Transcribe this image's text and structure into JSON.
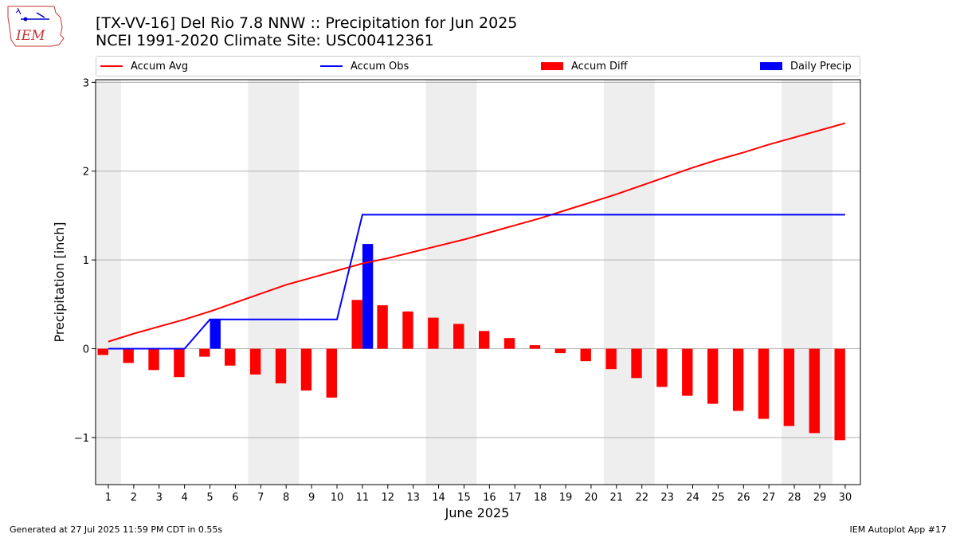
{
  "header": {
    "title": "[TX-VV-16] Del Rio 7.8 NNW :: Precipitation for Jun 2025",
    "subtitle": "NCEI 1991-2020 Climate Site: USC00412361",
    "logo_text": "IEM"
  },
  "footer": {
    "generated": "Generated at 27 Jul 2025 11:59 PM CDT in 0.55s",
    "app": "IEM Autoplot App #17"
  },
  "legend": [
    {
      "label": "Accum Avg",
      "kind": "line",
      "color": "#ff0000"
    },
    {
      "label": "Accum Obs",
      "kind": "line",
      "color": "#0000ff"
    },
    {
      "label": "Accum Diff",
      "kind": "bar",
      "color": "#ff0000"
    },
    {
      "label": "Daily Precip",
      "kind": "bar",
      "color": "#0000ff"
    }
  ],
  "chart_data": {
    "type": "bar",
    "xlabel": "June 2025",
    "ylabel": "Precipitation [inch]",
    "ylim": [
      -1.53,
      3.03
    ],
    "yticks": [
      -1,
      0,
      1,
      2,
      3
    ],
    "ytick_labels": [
      "−1",
      "0",
      "1",
      "2",
      "3"
    ],
    "grid": true,
    "legend_position": "top",
    "days": [
      1,
      2,
      3,
      4,
      5,
      6,
      7,
      8,
      9,
      10,
      11,
      12,
      13,
      14,
      15,
      16,
      17,
      18,
      19,
      20,
      21,
      22,
      23,
      24,
      25,
      26,
      27,
      28,
      29,
      30
    ],
    "weekend_shading": [
      [
        1,
        1
      ],
      [
        7,
        8
      ],
      [
        14,
        15
      ],
      [
        21,
        22
      ],
      [
        28,
        29
      ]
    ],
    "series": [
      {
        "name": "Accum Avg",
        "kind": "line",
        "color": "#ff0000",
        "values": [
          0.08,
          0.17,
          0.25,
          0.33,
          0.42,
          0.52,
          0.62,
          0.72,
          0.8,
          0.88,
          0.96,
          1.02,
          1.09,
          1.16,
          1.23,
          1.31,
          1.39,
          1.47,
          1.56,
          1.65,
          1.74,
          1.84,
          1.94,
          2.04,
          2.13,
          2.21,
          2.3,
          2.38,
          2.46,
          2.54
        ]
      },
      {
        "name": "Accum Obs",
        "kind": "line",
        "color": "#0000ff",
        "values": [
          0,
          0,
          0,
          0,
          0.33,
          0.33,
          0.33,
          0.33,
          0.33,
          0.33,
          1.51,
          1.51,
          1.51,
          1.51,
          1.51,
          1.51,
          1.51,
          1.51,
          1.51,
          1.51,
          1.51,
          1.51,
          1.51,
          1.51,
          1.51,
          1.51,
          1.51,
          1.51,
          1.51,
          1.51
        ]
      },
      {
        "name": "Accum Diff",
        "kind": "bar",
        "color": "#ff0000",
        "values": [
          -0.07,
          -0.16,
          -0.24,
          -0.32,
          -0.09,
          -0.19,
          -0.29,
          -0.39,
          -0.47,
          -0.55,
          0.55,
          0.49,
          0.42,
          0.35,
          0.28,
          0.2,
          0.12,
          0.04,
          -0.05,
          -0.14,
          -0.23,
          -0.33,
          -0.43,
          -0.53,
          -0.62,
          -0.7,
          -0.79,
          -0.87,
          -0.95,
          -1.03
        ]
      },
      {
        "name": "Daily Precip",
        "kind": "bar",
        "color": "#0000ff",
        "values": [
          0,
          0,
          0,
          0,
          0.33,
          0,
          0,
          0,
          0,
          0,
          1.18,
          0,
          0,
          0,
          0,
          0,
          0,
          0,
          0,
          0,
          0,
          0,
          0,
          0,
          0,
          0,
          0,
          0,
          0,
          0
        ]
      }
    ]
  }
}
